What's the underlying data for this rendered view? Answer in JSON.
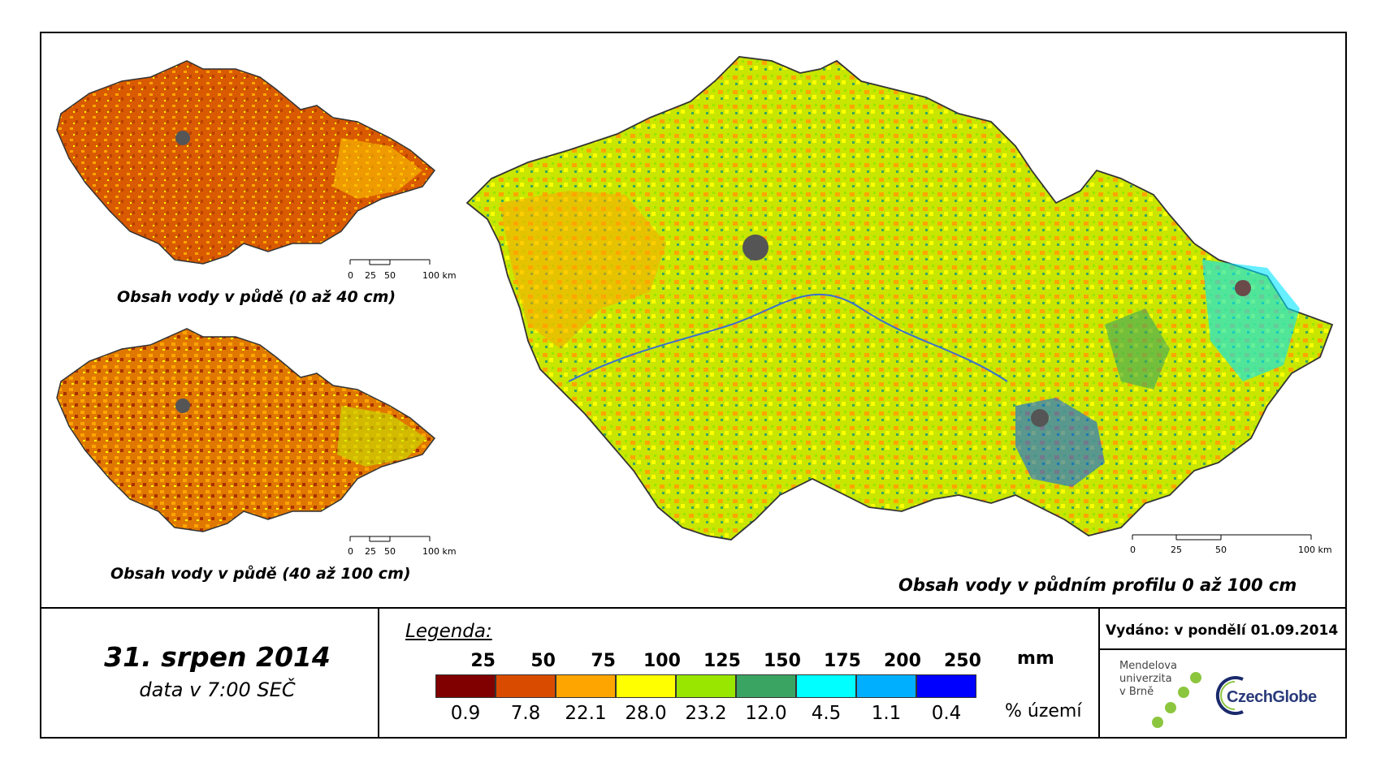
{
  "maps": {
    "small_top": {
      "caption": "Obsah vody v půdě (0 až 40 cm)",
      "dominant_color": "#d95a00"
    },
    "small_bottom": {
      "caption": "Obsah vody v půdě (40 až 100 cm)",
      "dominant_color": "#e07800"
    },
    "large": {
      "caption": "Obsah vody v půdním profilu 0 až 100 cm",
      "dominant_color": "#c8e600"
    }
  },
  "scale": {
    "ticks": [
      "0",
      "25",
      "50",
      "100 km"
    ]
  },
  "date": {
    "main": "31. srpen 2014",
    "sub": "data v 7:00 SEČ"
  },
  "legend": {
    "title": "Legenda:",
    "unit": "mm",
    "percent_label": "% území",
    "thresholds": [
      "25",
      "50",
      "75",
      "100",
      "125",
      "150",
      "175",
      "200",
      "250"
    ],
    "classes": [
      {
        "color": "#800000",
        "percent": "0.9"
      },
      {
        "color": "#d94c00",
        "percent": "7.8"
      },
      {
        "color": "#ffa500",
        "percent": "22.1"
      },
      {
        "color": "#ffff00",
        "percent": "28.0"
      },
      {
        "color": "#99e600",
        "percent": "23.2"
      },
      {
        "color": "#3aa562",
        "percent": "12.0"
      },
      {
        "color": "#00ffff",
        "percent": "4.5"
      },
      {
        "color": "#00b0ff",
        "percent": "1.1"
      },
      {
        "color": "#0000ff",
        "percent": "0.4"
      }
    ]
  },
  "issued": "Vydáno: v pondělí 01.09.2014",
  "logos": {
    "university": [
      "Mendelova",
      "univerzita",
      "v Brně"
    ],
    "czechglobe": "CzechGlobe"
  }
}
